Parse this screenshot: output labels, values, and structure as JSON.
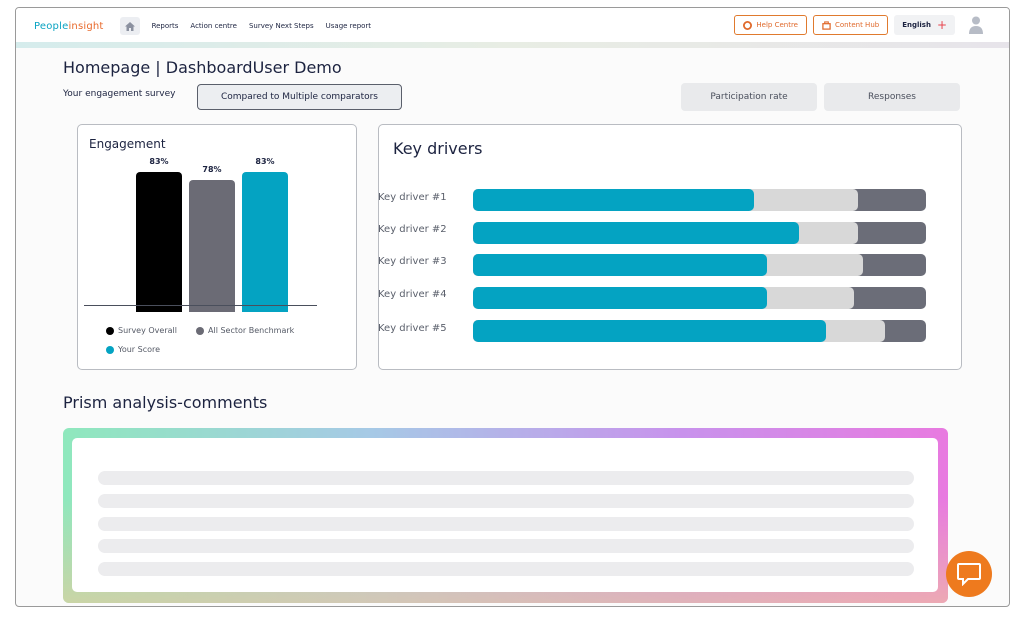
{
  "nav": {
    "logo_part1": "People",
    "logo_part2": "insight",
    "links": [
      "Reports",
      "Action centre",
      "Survey Next Steps",
      "Usage report"
    ],
    "help_label": "Help Centre",
    "content_hub_label": "Content Hub",
    "language": "English"
  },
  "page": {
    "title": "Homepage | DashboardUser Demo",
    "survey_label": "Your engagement survey",
    "compare_label": "Compared to Multiple comparators",
    "participation_label": "Participation rate",
    "responses_label": "Responses"
  },
  "engagement": {
    "title": "Engagement",
    "legend": [
      "Survey Overall",
      "All Sector Benchmark",
      "Your Score"
    ]
  },
  "key_drivers": {
    "title": "Key drivers",
    "labels": [
      "Key driver #1",
      "Key driver #2",
      "Key driver #3",
      "Key driver #4",
      "Key driver #5"
    ]
  },
  "prism": {
    "title": "Prism analysis-comments"
  },
  "chart_data": [
    {
      "type": "bar",
      "title": "Engagement",
      "categories": [
        "Survey Overall",
        "All Sector Benchmark",
        "Your Score"
      ],
      "values": [
        83,
        78,
        83
      ],
      "value_labels": [
        "83%",
        "78%",
        "83%"
      ],
      "colors": [
        "#000000",
        "#6b6b75",
        "#04a3c2"
      ],
      "legend": "bottom"
    },
    {
      "type": "bar",
      "title": "Key drivers",
      "orientation": "horizontal",
      "categories": [
        "Key driver #1",
        "Key driver #2",
        "Key driver #3",
        "Key driver #4",
        "Key driver #5"
      ],
      "series": [
        {
          "values": [
            62,
            72,
            65,
            65,
            78
          ],
          "color": "#04a3c2"
        },
        {
          "values": [
            85,
            85,
            86,
            84,
            91
          ],
          "color": "#d8d8d8"
        }
      ],
      "ylim": [
        0,
        100
      ]
    }
  ]
}
